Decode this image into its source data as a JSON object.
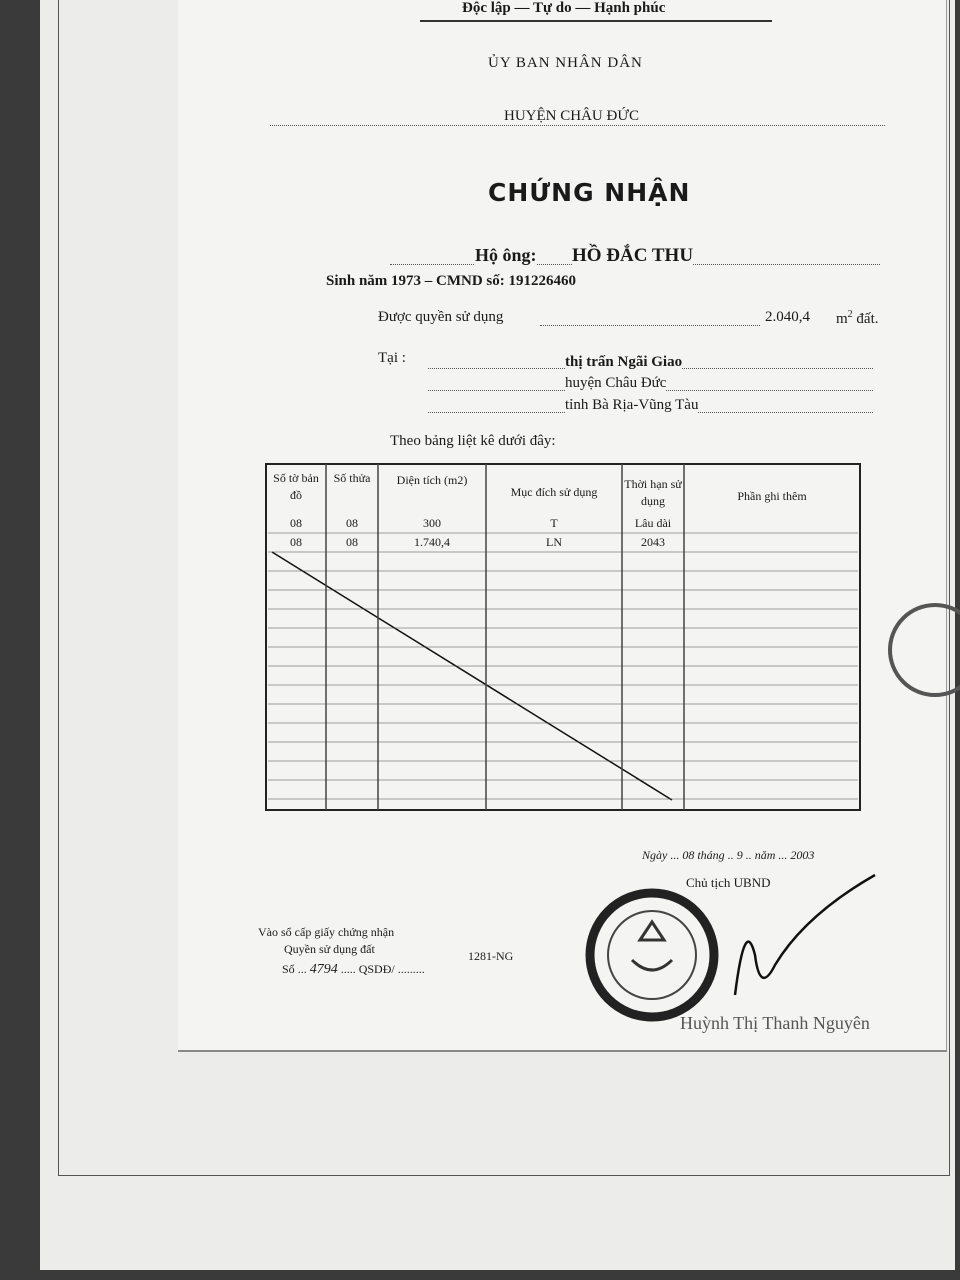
{
  "header": {
    "motto": "Độc lập — Tự do — Hạnh phúc",
    "authority": "ỦY BAN NHÂN DÂN",
    "district": "HUYỆN CHÂU ĐỨC"
  },
  "title": "CHỨNG NHẬN",
  "holder": {
    "label": "Hộ ông:",
    "name": "HỒ ĐẮC THU",
    "birth_id": "Sinh năm 1973 – CMND số: 191226460"
  },
  "area": {
    "label": "Được quyền sử dụng",
    "value": "2.040,4",
    "unit": "m",
    "unit_power": "2",
    "suffix": "đất."
  },
  "location": {
    "label": "Tại :",
    "lines": [
      "thị trấn Ngãi Giao",
      "huyện Châu Đức",
      "tỉnh Bà Rịa-Vũng Tàu"
    ]
  },
  "table": {
    "intro": "Theo bảng liệt kê dưới đây:",
    "headers": [
      "Số tờ bản đồ",
      "Số thửa",
      "Diện tích (m2)",
      "Mục đích sử dụng",
      "Thời hạn sử dụng",
      "Phần ghi thêm"
    ],
    "rows": [
      [
        "08",
        "08",
        "300",
        "T",
        "Lâu dài"
      ],
      [
        "08",
        "08",
        "1.740,4",
        "LN",
        "2043"
      ]
    ]
  },
  "date": {
    "day_label": "Ngày",
    "day": "08",
    "month_label": "tháng",
    "month": "9",
    "year_label": "năm",
    "year": "2003"
  },
  "signer": {
    "title": "Chủ tịch UBND",
    "name": "Huỳnh Thị Thanh Nguyên"
  },
  "registry": {
    "line1": "Vào sổ cấp giấy chứng nhận",
    "line2": "Quyền sử dụng đất",
    "code": "1281-NG",
    "number_label": "Số",
    "number": "4794",
    "number_suffix": "QSDĐ/"
  }
}
